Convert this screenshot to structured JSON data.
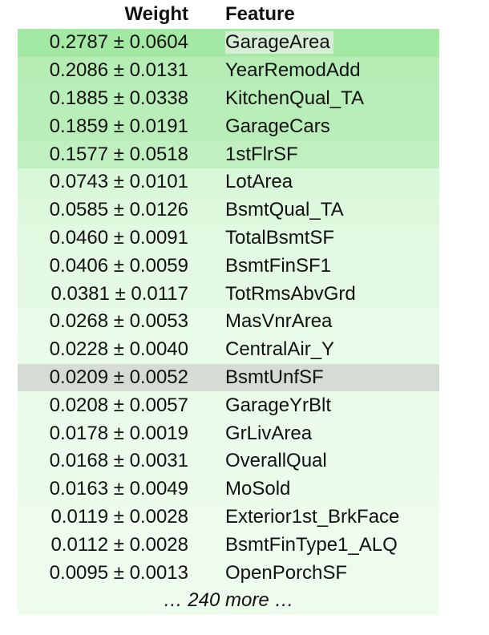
{
  "header": {
    "weight_label": "Weight",
    "feature_label": "Feature"
  },
  "rows": [
    {
      "weight": "0.2787 ± 0.0604",
      "feature": "GarageArea",
      "color": "#a3e8a3"
    },
    {
      "weight": "0.2086 ± 0.0131",
      "feature": "YearRemodAdd",
      "color": "#b5edb5"
    },
    {
      "weight": "0.1885 ± 0.0338",
      "feature": "KitchenQual_TA",
      "color": "#b8eeb8"
    },
    {
      "weight": "0.1859 ± 0.0191",
      "feature": "GarageCars",
      "color": "#b9eeb9"
    },
    {
      "weight": "0.1577 ± 0.0518",
      "feature": "1stFlrSF",
      "color": "#c0f0c0"
    },
    {
      "weight": "0.0743 ± 0.0101",
      "feature": "LotArea",
      "color": "#d9f7d9"
    },
    {
      "weight": "0.0585 ± 0.0126",
      "feature": "BsmtQual_TA",
      "color": "#def8de"
    },
    {
      "weight": "0.0460 ± 0.0091",
      "feature": "TotalBsmtSF",
      "color": "#e1f9e1"
    },
    {
      "weight": "0.0406 ± 0.0059",
      "feature": "BsmtFinSF1",
      "color": "#e3f9e3"
    },
    {
      "weight": "0.0381 ± 0.0117",
      "feature": "TotRmsAbvGrd",
      "color": "#e4f9e4"
    },
    {
      "weight": "0.0268 ± 0.0053",
      "feature": "MasVnrArea",
      "color": "#e8fbe8"
    },
    {
      "weight": "0.0228 ± 0.0040",
      "feature": "CentralAir_Y",
      "color": "#e9fbe9"
    },
    {
      "weight": "0.0209 ± 0.0052",
      "feature": "BsmtUnfSF",
      "color": "#d5dcd5"
    },
    {
      "weight": "0.0208 ± 0.0057",
      "feature": "GarageYrBlt",
      "color": "#eafbea"
    },
    {
      "weight": "0.0178 ± 0.0019",
      "feature": "GrLivArea",
      "color": "#ebfbeb"
    },
    {
      "weight": "0.0168 ± 0.0031",
      "feature": "OverallQual",
      "color": "#ebfbeb"
    },
    {
      "weight": "0.0163 ± 0.0049",
      "feature": "MoSold",
      "color": "#ebfceb"
    },
    {
      "weight": "0.0119 ± 0.0028",
      "feature": "Exterior1st_BrkFace",
      "color": "#edfced"
    },
    {
      "weight": "0.0112 ± 0.0028",
      "feature": "BsmtFinType1_ALQ",
      "color": "#edfced"
    },
    {
      "weight": "0.0095 ± 0.0013",
      "feature": "OpenPorchSF",
      "color": "#eefcee"
    }
  ],
  "footer": {
    "more_label": "… 240 more …",
    "color": "#eefcee"
  }
}
